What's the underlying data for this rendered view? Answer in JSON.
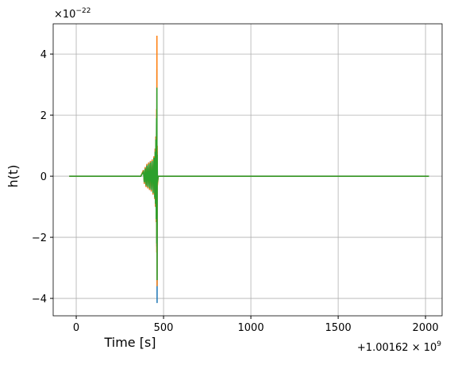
{
  "chart_data": {
    "type": "line",
    "xlabel": "Time [s]",
    "ylabel": "h(t)",
    "x_offset_label": {
      "base": "+1.00162 × 10",
      "exponent": "9"
    },
    "y_offset_label": {
      "base": "×10",
      "exponent": "−22"
    },
    "x": [
      -40,
      370,
      385,
      390,
      395,
      400,
      405,
      410,
      415,
      420,
      425,
      430,
      435,
      440,
      445,
      450,
      452,
      454,
      456,
      458,
      460,
      461,
      462,
      463,
      464,
      465,
      470,
      2020
    ],
    "series": [
      {
        "color": "#1f77b4",
        "values": [
          0,
          0,
          0.2,
          -0.25,
          0.3,
          -0.35,
          0.4,
          -0.4,
          0.45,
          -0.45,
          0.5,
          -0.5,
          0.55,
          -0.6,
          0.65,
          -0.75,
          0.9,
          -1.0,
          1.3,
          -1.5,
          2.0,
          -2.3,
          3.5,
          -4.15,
          0.8,
          -0.2,
          0,
          0
        ]
      },
      {
        "color": "#ff7f0e",
        "values": [
          0,
          0,
          0.2,
          -0.25,
          0.3,
          -0.35,
          0.4,
          -0.4,
          0.45,
          -0.45,
          0.5,
          -0.5,
          0.55,
          -0.6,
          0.65,
          -0.75,
          0.9,
          -1.0,
          1.3,
          -1.5,
          2.2,
          -2.5,
          4.6,
          -3.6,
          1.0,
          -0.3,
          0,
          0
        ]
      },
      {
        "color": "#2ca02c",
        "values": [
          0,
          0,
          0.15,
          -0.2,
          0.25,
          -0.3,
          0.35,
          -0.35,
          0.4,
          -0.4,
          0.45,
          -0.45,
          0.5,
          -0.55,
          0.6,
          -0.7,
          0.8,
          -0.9,
          1.2,
          -1.4,
          1.9,
          -2.2,
          2.9,
          -3.4,
          0.7,
          -0.2,
          0,
          0
        ]
      }
    ],
    "xlim": [
      -132,
      2095
    ],
    "ylim": [
      -4.57,
      4.99
    ],
    "xticks": [
      0,
      500,
      1000,
      1500,
      2000
    ],
    "yticks": [
      {
        "value": -4,
        "label": "−4"
      },
      {
        "value": -2,
        "label": "−2"
      },
      0,
      2,
      4
    ],
    "grid": true
  }
}
